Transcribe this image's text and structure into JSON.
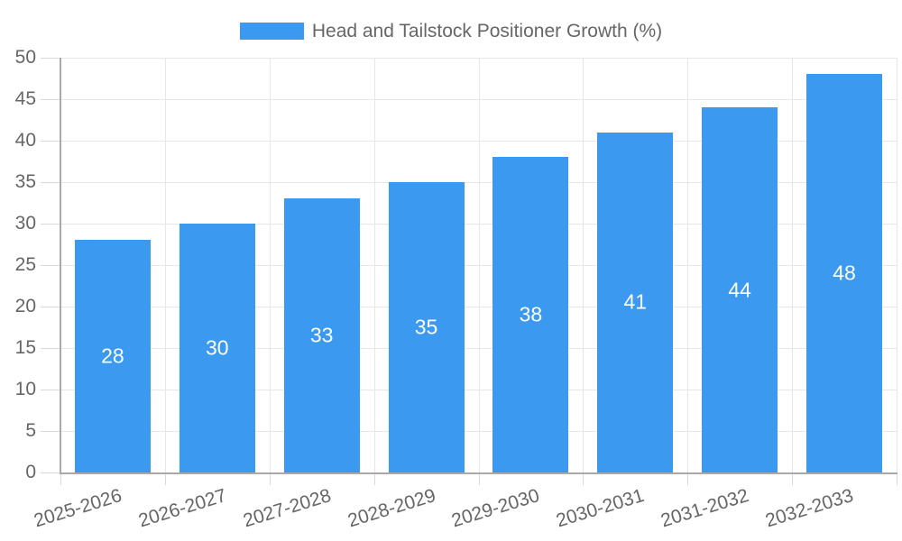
{
  "legend": {
    "label": "Head and Tailstock Positioner Growth (%)"
  },
  "colors": {
    "bar": "#3B9AF0",
    "grid": "#E7E7E7",
    "tick": "#D9D9D9",
    "axis": "#A9A9A9",
    "tick_text": "#666666",
    "value_label": "#FFFFFF",
    "background": "#FFFFFF"
  },
  "chart_data": {
    "type": "bar",
    "title": "Head and Tailstock Positioner Growth (%)",
    "categories": [
      "2025-2026",
      "2026-2027",
      "2027-2028",
      "2028-2029",
      "2029-2030",
      "2030-2031",
      "2031-2032",
      "2032-2033"
    ],
    "values": [
      28,
      30,
      33,
      35,
      38,
      41,
      44,
      48
    ],
    "yticks": [
      0,
      5,
      10,
      15,
      20,
      25,
      30,
      35,
      40,
      45,
      50
    ],
    "ylim": [
      0,
      50
    ],
    "xlabel": "",
    "ylabel": "",
    "grid": true,
    "legend_position": "top-center",
    "value_labels": "inside-center",
    "bar_label_color": "#FFFFFF",
    "x_label_rotation_deg": -17
  }
}
